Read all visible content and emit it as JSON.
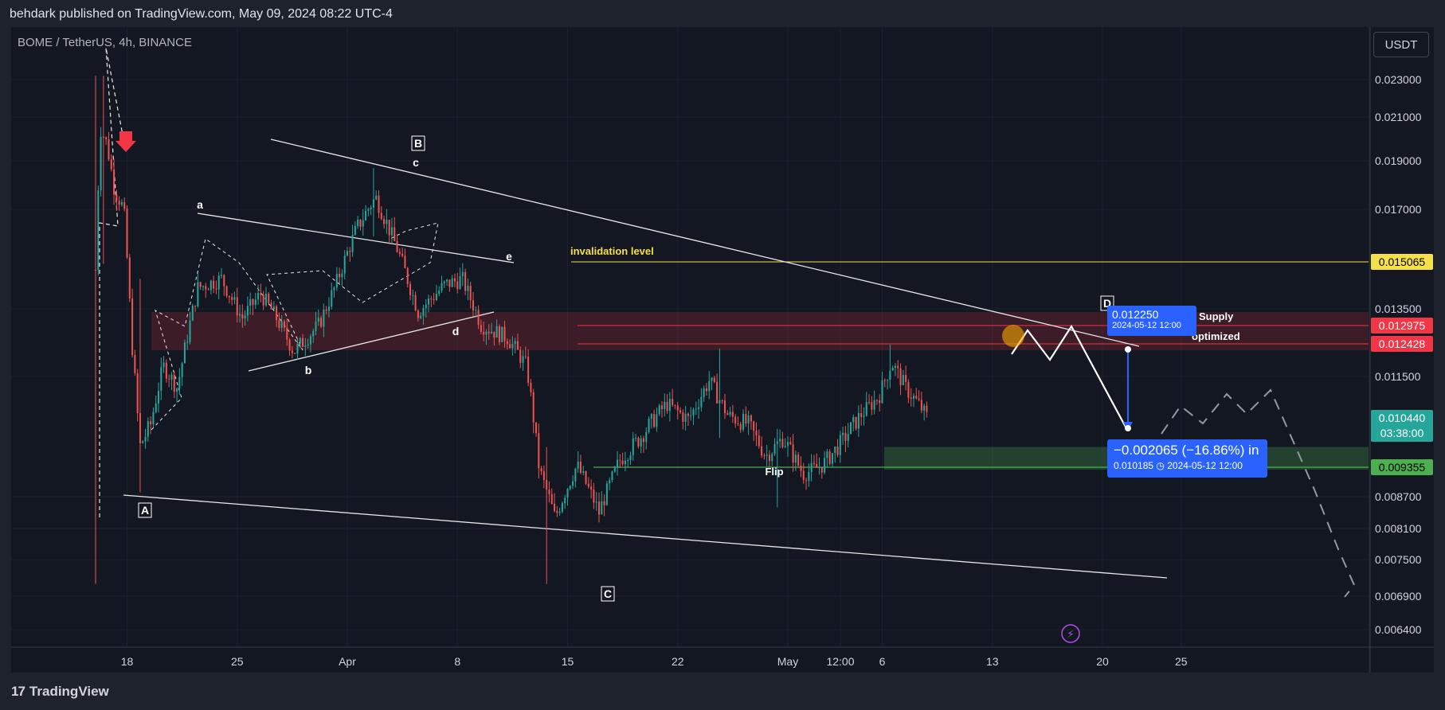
{
  "caption": "behdark published on TradingView.com, May 09, 2024 08:22 UTC-4",
  "symbol": "BOME / TetherUS, 4h, BINANCE",
  "currency": "USDT",
  "footer": "TradingView",
  "annotations": {
    "invalidation": "invalidation level",
    "flip": "Flip",
    "supply": "Supply",
    "optimized": "optimized",
    "wave_A": "A",
    "wave_B": "B",
    "wave_C": "C",
    "wave_D": "D",
    "sub_a": "a",
    "sub_b": "b",
    "sub_c": "c",
    "sub_d": "d",
    "sub_e": "e"
  },
  "tooltip_top": {
    "value": "0.012250",
    "date": "2024-05-12 12:00"
  },
  "tooltip_bottom": {
    "value": "−0.002065 (−16.86%) in",
    "detail": "0.010185",
    "date": "2024-05-12  12:00"
  },
  "colors": {
    "up": "#26a69a",
    "down": "#ef5350",
    "background": "#131722",
    "supply_zone": "#f23645",
    "demand_zone": "#4caf50",
    "invalidation": "#f5e04a",
    "tool": "#2962ff"
  },
  "chart_data": {
    "type": "candlestick",
    "x_ticks": [
      "18",
      "25",
      "Apr",
      "8",
      "15",
      "22",
      "12:00",
      "May",
      "6",
      "13",
      "20",
      "25"
    ],
    "y_ticks": [
      "0.023000",
      "0.021000",
      "0.019000",
      "0.017000",
      "0.013500",
      "0.011500",
      "0.008700",
      "0.008100",
      "0.007500",
      "0.006900",
      "0.006400"
    ],
    "price_labels": [
      {
        "value": "0.015065",
        "color": "#f5e04a",
        "text_color": "#000"
      },
      {
        "value": "0.012975",
        "color": "#f23645",
        "text_color": "#fff"
      },
      {
        "value": "0.012428",
        "color": "#f23645",
        "text_color": "#fff"
      },
      {
        "value": "0.010440",
        "sub": "03:38:00",
        "color": "#26a69a",
        "text_color": "#fff"
      },
      {
        "value": "0.009355",
        "color": "#4caf50",
        "text_color": "#000"
      }
    ],
    "levels": {
      "invalidation": 0.015065,
      "supply_top": 0.0134,
      "supply_mid": 0.012975,
      "supply_bottom": 0.012428,
      "demand_top": 0.0098,
      "flip": 0.009355
    },
    "close_last": 0.01044,
    "y_range": [
      0.0061,
      0.0243
    ],
    "x_range_days": [
      14.0,
      56.8
    ]
  }
}
